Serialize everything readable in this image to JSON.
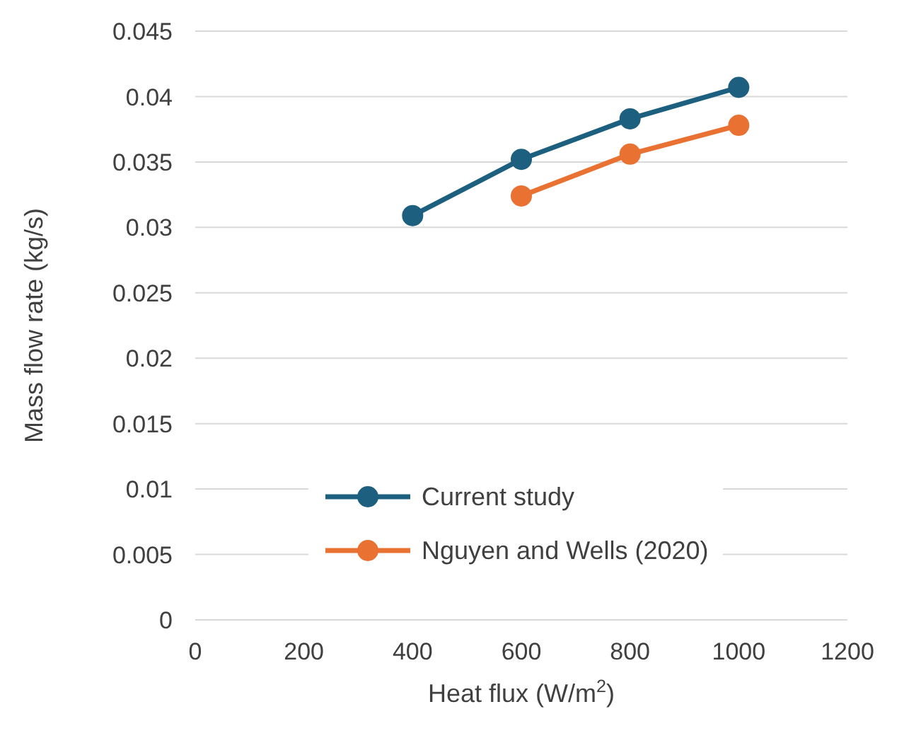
{
  "chart_data": {
    "type": "line",
    "xlabel": "Heat flux (W/m$^{2}$)",
    "ylabel": "Mass flow rate (kg/s)",
    "xlim": [
      0,
      1200
    ],
    "xticks": [
      0,
      200,
      400,
      600,
      800,
      1000,
      1200
    ],
    "ylim": [
      0,
      0.045
    ],
    "yticks": [
      0,
      0.005,
      0.01,
      0.015,
      0.02,
      0.025,
      0.03,
      0.035,
      0.04,
      0.045
    ],
    "grid": "y",
    "legend": "bottom",
    "marker": "circle",
    "line_style": "solid",
    "series": [
      {
        "name": "Current study",
        "color": "#1d5f7f",
        "x": [
          400,
          600,
          800,
          1000
        ],
        "values": [
          0.0309,
          0.0352,
          0.0383,
          0.0407
        ]
      },
      {
        "name": "Nguyen and Wells (2020)",
        "color": "#e97132",
        "x": [
          600,
          800,
          1000
        ],
        "values": [
          0.0324,
          0.0356,
          0.0378
        ]
      }
    ]
  }
}
